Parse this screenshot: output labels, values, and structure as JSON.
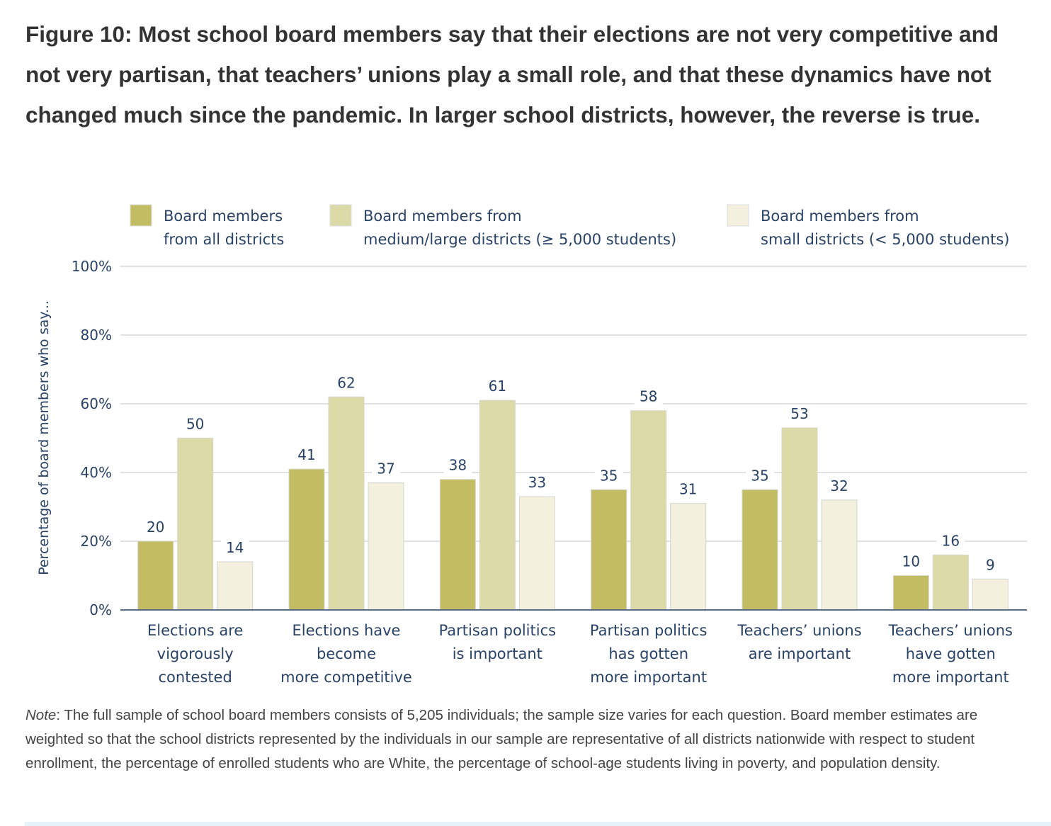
{
  "title": "Figure 10: Most school board members say that their elections are not very competitive and not very partisan, that teachers’ unions play a small role, and that these dynamics have not changed much since the pandemic. In larger school districts, however, the reverse is true.",
  "note": {
    "label": "Note",
    "text": ": The full sample of school board members consists of 5,205 individuals; the sample size varies for each question. Board member estimates are weighted so that the school districts represented by the individuals in our sample are representative of all districts nationwide with respect to student enrollment, the percentage of enrolled students who are White, the percentage of school-age students living in poverty, and population density."
  },
  "chart_data": {
    "type": "bar",
    "title": "",
    "xlabel": "",
    "ylabel": "Percentage of board members who say...",
    "ylim": [
      0,
      100
    ],
    "yticks": [
      0,
      20,
      40,
      60,
      80,
      100
    ],
    "ytick_labels": [
      "0%",
      "20%",
      "40%",
      "60%",
      "80%",
      "100%"
    ],
    "grid": true,
    "legend_position": "top",
    "categories": [
      [
        "Elections are",
        "vigorously",
        "contested"
      ],
      [
        "Elections have",
        "become",
        "more competitive"
      ],
      [
        "Partisan politics",
        "is important"
      ],
      [
        "Partisan politics",
        "has gotten",
        "more important"
      ],
      [
        "Teachers’ unions",
        "are important"
      ],
      [
        "Teachers’ unions",
        "have gotten",
        "more important"
      ]
    ],
    "series": [
      {
        "name": [
          "Board members",
          "from all districts"
        ],
        "color": "#c2bc62",
        "values": [
          20,
          41,
          38,
          35,
          35,
          10
        ]
      },
      {
        "name": [
          "Board members from",
          "medium/large districts (≥ 5,000 students)"
        ],
        "color": "#dcdaa6",
        "values": [
          50,
          62,
          61,
          58,
          53,
          16
        ]
      },
      {
        "name": [
          "Board members from",
          "small districts (< 5,000 students)"
        ],
        "color": "#f3f0de",
        "values": [
          14,
          37,
          33,
          31,
          32,
          9
        ]
      }
    ]
  }
}
